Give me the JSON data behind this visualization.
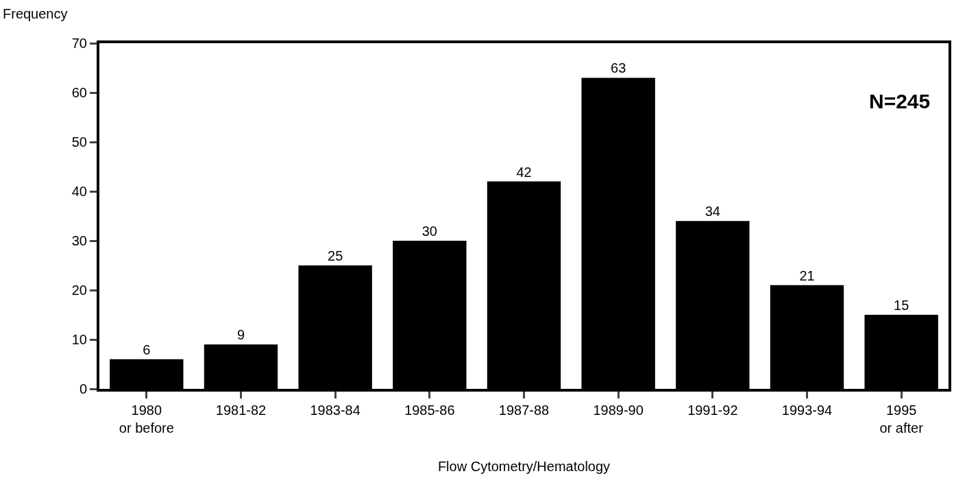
{
  "chart_data": {
    "type": "bar",
    "xlabel": "Flow Cytometry/Hematology",
    "ylabel": "Frequency",
    "categories": [
      "1980\nor before",
      "1981-82",
      "1983-84",
      "1985-86",
      "1987-88",
      "1989-90",
      "1991-92",
      "1993-94",
      "1995\nor after"
    ],
    "values": [
      6,
      9,
      25,
      30,
      42,
      63,
      34,
      21,
      15
    ],
    "color": "#000000",
    "ylim": [
      0,
      70
    ],
    "yticks": [
      0,
      10,
      20,
      30,
      40,
      50,
      60,
      70
    ],
    "data_labels": true,
    "annotations": [
      "N=245"
    ]
  }
}
